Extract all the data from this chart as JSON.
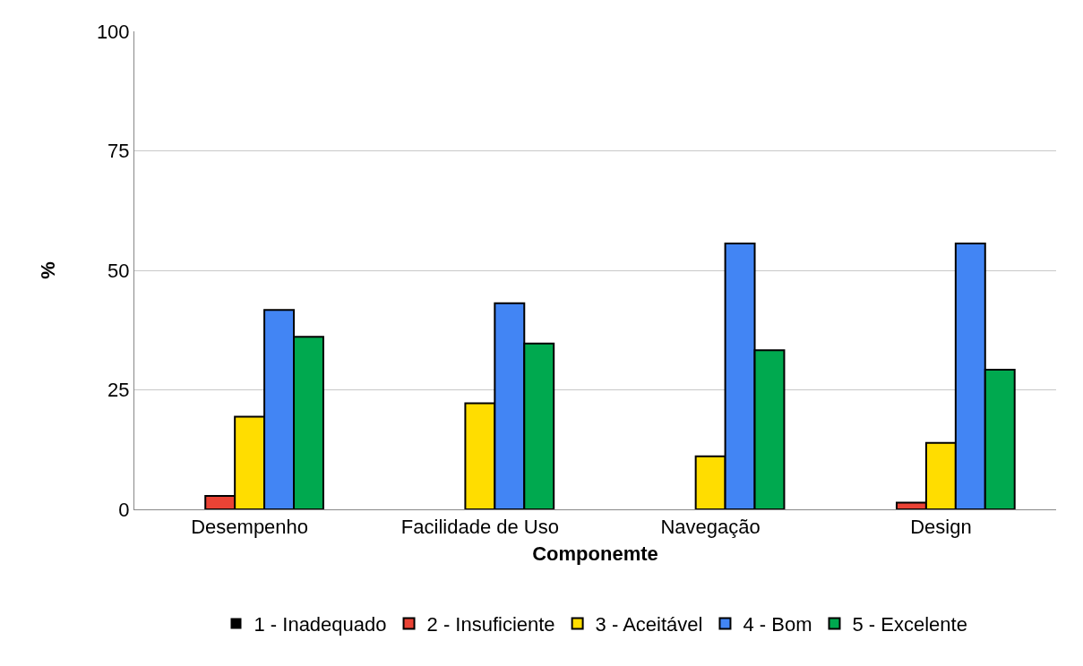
{
  "chart_data": {
    "type": "bar",
    "xlabel": "Componemte",
    "ylabel": "%",
    "categories": [
      "Desempenho",
      "Facilidade de Uso",
      "Navegação",
      "Design"
    ],
    "series": [
      {
        "name": "1 - Inadequado",
        "color": "#000000",
        "values": [
          0,
          0,
          0,
          0
        ]
      },
      {
        "name": "2 - Insuficiente",
        "color": "#ea4335",
        "values": [
          2.8,
          0,
          0,
          1.4
        ]
      },
      {
        "name": "3 - Aceitável",
        "color": "#ffdd00",
        "values": [
          19.4,
          22.2,
          11.1,
          13.9
        ]
      },
      {
        "name": "4 - Bom",
        "color": "#4285f4",
        "values": [
          41.7,
          43.1,
          55.6,
          55.6
        ]
      },
      {
        "name": "5 - Excelente",
        "color": "#00a94f",
        "values": [
          36.1,
          34.7,
          33.3,
          29.2
        ]
      }
    ],
    "ylim": [
      0,
      100
    ],
    "yticks": [
      0,
      25,
      50,
      75,
      100
    ],
    "grid": "y",
    "legend": "bottom"
  }
}
